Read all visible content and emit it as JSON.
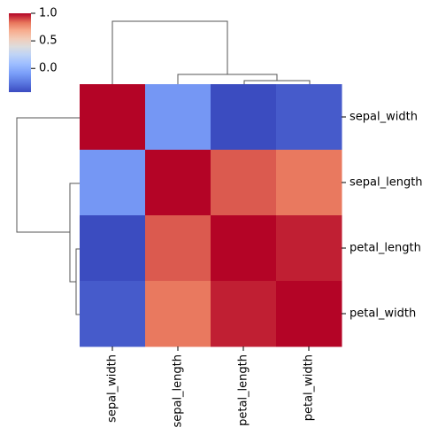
{
  "chart_data": {
    "type": "heatmap",
    "row_labels": [
      "sepal_width",
      "sepal_length",
      "petal_length",
      "petal_width"
    ],
    "col_labels": [
      "sepal_width",
      "sepal_length",
      "petal_length",
      "petal_width"
    ],
    "values": [
      [
        1.0,
        -0.12,
        -0.43,
        -0.37
      ],
      [
        -0.12,
        1.0,
        0.87,
        0.82
      ],
      [
        -0.43,
        0.87,
        1.0,
        0.96
      ],
      [
        -0.37,
        0.82,
        0.96,
        1.0
      ]
    ],
    "colorbar": {
      "min": -0.43,
      "max": 1.0,
      "ticks": [
        "1.0",
        "0.5",
        "0.0"
      ],
      "tick_values": [
        1.0,
        0.5,
        0.0
      ],
      "colormap": "coolwarm"
    },
    "dendrogram": {
      "row": "left",
      "col": "top"
    },
    "title": "",
    "xlabel": "",
    "ylabel": ""
  }
}
